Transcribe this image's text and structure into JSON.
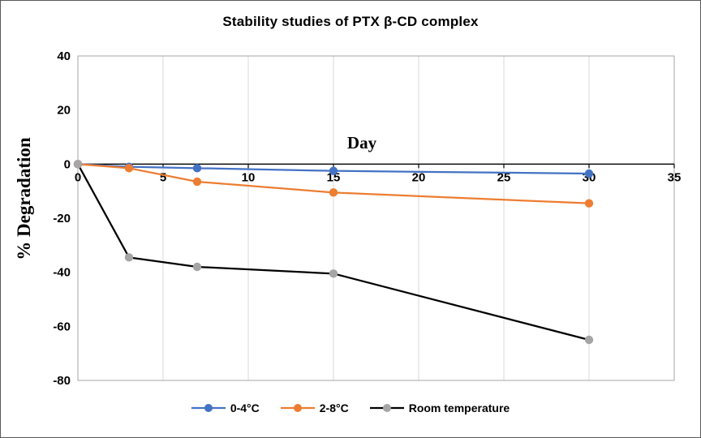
{
  "figure": {
    "title": "Stability studies of PTX β-CD complex",
    "x_axis_title": "Day",
    "y_axis_title": "% Degradation"
  },
  "chart_data": {
    "type": "line",
    "title": "Stability studies of PTX β-CD complex",
    "xlabel": "Day",
    "ylabel": "% Degradation",
    "x": [
      0,
      3,
      7,
      15,
      30
    ],
    "series": [
      {
        "name": "0-4°C",
        "color": "#4472C4",
        "marker_color": "#4472C4",
        "values": [
          0,
          -1,
          -1.5,
          -2.5,
          -3.5
        ]
      },
      {
        "name": "2-8°C",
        "color": "#ED7D31",
        "marker_color": "#ED7D31",
        "values": [
          0,
          -1.5,
          -6.5,
          -10.5,
          -14.5
        ]
      },
      {
        "name": "Room temperature",
        "color": "#000000",
        "marker_color": "#A5A5A5",
        "values": [
          0,
          -34.5,
          -38,
          -40.5,
          -65
        ]
      }
    ],
    "xlim": [
      0,
      35
    ],
    "ylim": [
      -80,
      40
    ],
    "x_ticks": [
      0,
      5,
      10,
      15,
      20,
      25,
      30,
      35
    ],
    "y_ticks": [
      40,
      20,
      0,
      -20,
      -40,
      -60,
      -80
    ],
    "grid": "vertical-major",
    "legend_position": "bottom",
    "gridline_color": "#D9D9D9",
    "border_color": "#A6A6A6",
    "axis_color": "#000000"
  }
}
